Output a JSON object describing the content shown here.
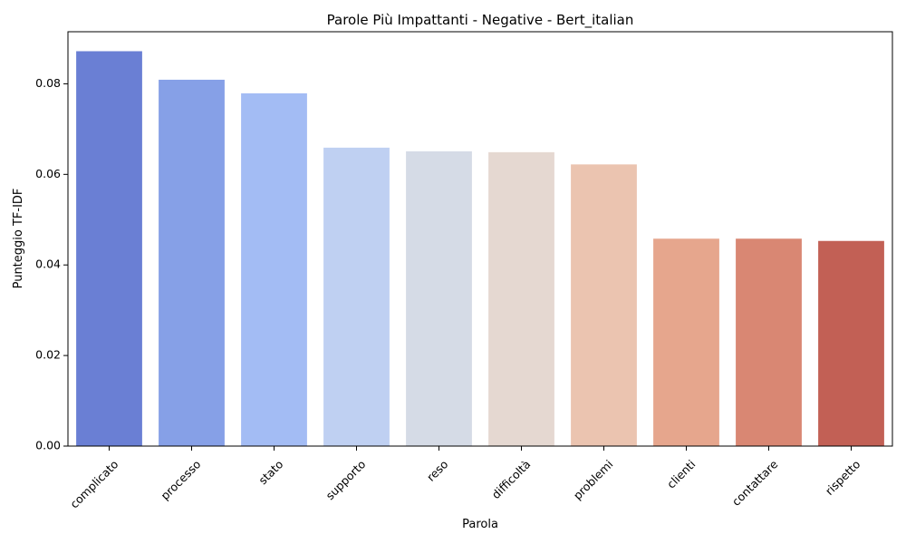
{
  "chart_data": {
    "type": "bar",
    "title": "Parole Più Impattanti - Negative - Bert_italian",
    "xlabel": "Parola",
    "ylabel": "Punteggio TF-IDF",
    "categories": [
      "complicato",
      "processo",
      "stato",
      "supporto",
      "reso",
      "difficoltà",
      "problemi",
      "clienti",
      "contattare",
      "rispetto"
    ],
    "values": [
      0.0872,
      0.0809,
      0.0779,
      0.0659,
      0.0651,
      0.0649,
      0.0622,
      0.0458,
      0.0458,
      0.0453
    ],
    "colors": [
      "#6a7fd4",
      "#86a0e7",
      "#a3bcf4",
      "#bfd0f2",
      "#d5dbe6",
      "#e5d8d1",
      "#ebc4b0",
      "#e6a68d",
      "#d98773",
      "#c26055"
    ],
    "yticks": [
      0.0,
      0.02,
      0.04,
      0.06,
      0.08
    ],
    "ytick_labels": [
      "0.00",
      "0.02",
      "0.04",
      "0.06",
      "0.08"
    ],
    "ylim": [
      0,
      0.0915
    ],
    "grid": false,
    "legend": "none"
  }
}
